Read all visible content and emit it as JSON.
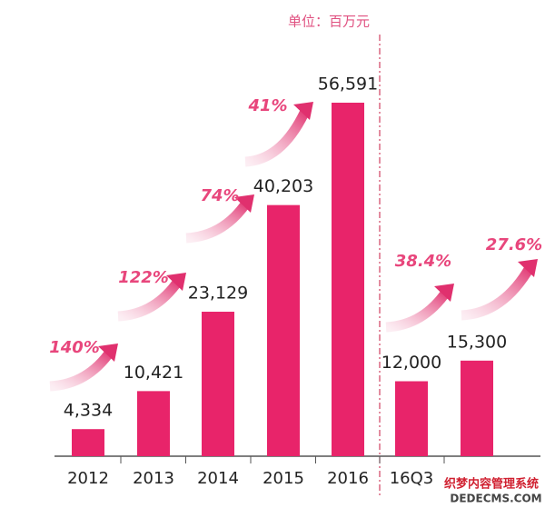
{
  "chart_data": {
    "type": "bar",
    "unit": "单位：百万元",
    "categories": [
      "2012",
      "2013",
      "2014",
      "2015",
      "2016",
      "16Q3",
      null
    ],
    "values": [
      4334,
      10421,
      23129,
      40203,
      56591,
      12000,
      15300
    ],
    "value_labels": [
      "4,334",
      "10,421",
      "23,129",
      "40,203",
      "56,591",
      "12,000",
      "15,300"
    ],
    "color": "#e8246a",
    "annotations": [
      "140%",
      "122%",
      "74%",
      "41%",
      "38.4%",
      "27.6%"
    ]
  },
  "watermark": [
    "织梦内容管理系统",
    "DEDECMS.COM"
  ]
}
